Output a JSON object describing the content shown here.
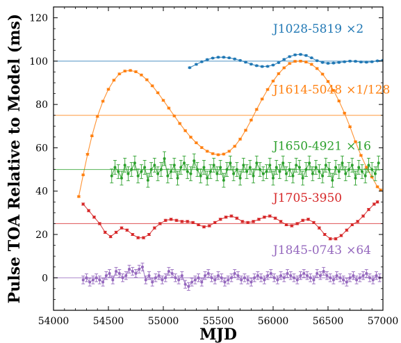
{
  "chart_data": {
    "type": "scatter",
    "xlabel": "MJD",
    "ylabel": "Pulse TOA Relative to Model (ms)",
    "xlim": [
      54000,
      57000
    ],
    "ylim": [
      -15,
      125
    ],
    "xticks": [
      54000,
      54500,
      55000,
      55500,
      56000,
      56500,
      57000
    ],
    "yticks": [
      0,
      20,
      40,
      60,
      80,
      100,
      120
    ],
    "grid": false,
    "series": [
      {
        "name": "J1028-5819",
        "scale_label": "×2",
        "color": "#1f77b4",
        "baseline": 100,
        "label_pos": [
          56000,
          115
        ],
        "error": 0.3,
        "x": [
          55240,
          55300,
          55350,
          55400,
          55450,
          55500,
          55550,
          55600,
          55650,
          55700,
          55750,
          55800,
          55850,
          55900,
          55950,
          56000,
          56050,
          56100,
          56150,
          56200,
          56250,
          56300,
          56350,
          56400,
          56450,
          56500,
          56550,
          56600,
          56650,
          56700,
          56750,
          56800,
          56850,
          56900,
          56950,
          57000
        ],
        "y": [
          97,
          98.5,
          99.7,
          100.7,
          101.4,
          101.8,
          101.8,
          101.5,
          101,
          100.3,
          99.5,
          98.6,
          97.9,
          97.5,
          97.6,
          98.2,
          99.3,
          100.8,
          102.1,
          102.9,
          103.1,
          102.6,
          101.5,
          100.2,
          99.4,
          99,
          99.1,
          99.4,
          99.7,
          100,
          99.9,
          99.6,
          99.5,
          99.7,
          100.1,
          100.4
        ]
      },
      {
        "name": "J1614-5048",
        "scale_label": "×1/128",
        "color": "#ff7f0e",
        "baseline": 75,
        "label_pos": [
          56000,
          87
        ],
        "error": 0.4,
        "x": [
          54230,
          54270,
          54310,
          54350,
          54400,
          54450,
          54500,
          54550,
          54600,
          54650,
          54700,
          54750,
          54800,
          54850,
          54900,
          54950,
          55000,
          55050,
          55100,
          55150,
          55200,
          55250,
          55300,
          55350,
          55400,
          55450,
          55500,
          55550,
          55600,
          55650,
          55700,
          55750,
          55800,
          55850,
          55900,
          55950,
          56000,
          56050,
          56100,
          56150,
          56200,
          56250,
          56300,
          56350,
          56400,
          56450,
          56500,
          56550,
          56600,
          56650,
          56700,
          56750,
          56800,
          56850,
          56900,
          56950,
          56980
        ],
        "y": [
          37.5,
          47.5,
          57,
          65.5,
          74.5,
          81.5,
          87,
          91.2,
          94.1,
          95.4,
          95.7,
          95.1,
          93.6,
          91.4,
          88.6,
          85.4,
          81.9,
          78.3,
          74.7,
          71.2,
          67.9,
          64.9,
          62.3,
          60.1,
          58.4,
          57.3,
          56.8,
          57.1,
          58.4,
          60.7,
          64,
          68.1,
          72.8,
          77.7,
          82.5,
          86.9,
          90.8,
          94.2,
          96.9,
          98.9,
          99.9,
          100,
          99.6,
          98.5,
          96.6,
          94,
          90.6,
          86.5,
          81.6,
          76,
          69.7,
          62.8,
          56.5,
          51,
          46.5,
          42,
          40.5
        ]
      },
      {
        "name": "J1650-4921",
        "scale_label": "×16",
        "color": "#2ca02c",
        "baseline": 50,
        "label_pos": [
          56000,
          61
        ],
        "error": 3.2,
        "x": [
          54530,
          54560,
          54590,
          54620,
          54650,
          54680,
          54710,
          54740,
          54770,
          54800,
          54830,
          54860,
          54890,
          54920,
          54950,
          54980,
          55010,
          55040,
          55070,
          55100,
          55130,
          55160,
          55190,
          55220,
          55250,
          55280,
          55310,
          55340,
          55370,
          55400,
          55430,
          55460,
          55490,
          55520,
          55550,
          55580,
          55610,
          55640,
          55670,
          55700,
          55730,
          55760,
          55790,
          55820,
          55850,
          55880,
          55910,
          55940,
          55970,
          56000,
          56030,
          56060,
          56090,
          56120,
          56150,
          56180,
          56210,
          56240,
          56270,
          56300,
          56330,
          56360,
          56390,
          56420,
          56450,
          56480,
          56510,
          56540,
          56570,
          56600,
          56630,
          56660,
          56690,
          56720,
          56750,
          56780,
          56810,
          56840,
          56870,
          56900,
          56930,
          56960
        ],
        "y": [
          47,
          51,
          49,
          46,
          52,
          48,
          50,
          53,
          47,
          49,
          51,
          45,
          50,
          52,
          48,
          50,
          55,
          47,
          49,
          52,
          46,
          51,
          53,
          49,
          48,
          54,
          50,
          47,
          51,
          46,
          49,
          52,
          48,
          51,
          45,
          50,
          53,
          48,
          50,
          46,
          52,
          49,
          51,
          47,
          53,
          50,
          48,
          49,
          52,
          46,
          51,
          49,
          53,
          48,
          50,
          47,
          52,
          51,
          46,
          50,
          53,
          48,
          51,
          49,
          47,
          52,
          50,
          45,
          51,
          49,
          53,
          48,
          50,
          52,
          46,
          51,
          49,
          47,
          52,
          50,
          48,
          53
        ]
      },
      {
        "name": "J1705-3950",
        "scale_label": "",
        "color": "#d62728",
        "baseline": 25,
        "label_pos": [
          56000,
          37
        ],
        "error": 0.5,
        "x": [
          54270,
          54320,
          54370,
          54420,
          54470,
          54520,
          54570,
          54620,
          54670,
          54720,
          54770,
          54820,
          54870,
          54920,
          54970,
          55020,
          55070,
          55120,
          55170,
          55220,
          55270,
          55320,
          55370,
          55420,
          55470,
          55520,
          55570,
          55620,
          55670,
          55720,
          55770,
          55820,
          55870,
          55920,
          55970,
          56020,
          56070,
          56120,
          56170,
          56220,
          56270,
          56320,
          56370,
          56420,
          56470,
          56520,
          56570,
          56620,
          56670,
          56720,
          56770,
          56820,
          56870,
          56920,
          56950
        ],
        "y": [
          34,
          31,
          28,
          25,
          21,
          19,
          21,
          23,
          22,
          20,
          18.5,
          18.5,
          20,
          23,
          25,
          26.5,
          27,
          26.5,
          26,
          26,
          25.5,
          24.5,
          23.5,
          24,
          25.5,
          27,
          28,
          28.5,
          27.5,
          26,
          25.5,
          26,
          27,
          28,
          28.5,
          27.5,
          26,
          24.5,
          24,
          25,
          26.5,
          27,
          25.5,
          23,
          20,
          18,
          18,
          19.5,
          22,
          24.5,
          26,
          28.5,
          31.5,
          34,
          35
        ]
      },
      {
        "name": "J1845-0743",
        "scale_label": "×64",
        "color": "#9467bd",
        "baseline": 0,
        "label_pos": [
          56000,
          13
        ],
        "error": 1.8,
        "x": [
          54270,
          54300,
          54330,
          54360,
          54390,
          54420,
          54450,
          54480,
          54510,
          54540,
          54570,
          54600,
          54630,
          54660,
          54690,
          54720,
          54750,
          54780,
          54810,
          54840,
          54870,
          54900,
          54930,
          54960,
          54990,
          55020,
          55050,
          55080,
          55110,
          55140,
          55170,
          55200,
          55230,
          55260,
          55290,
          55320,
          55350,
          55380,
          55410,
          55440,
          55470,
          55500,
          55530,
          55560,
          55590,
          55620,
          55650,
          55680,
          55710,
          55740,
          55770,
          55800,
          55830,
          55860,
          55890,
          55920,
          55950,
          55980,
          56010,
          56040,
          56070,
          56100,
          56130,
          56160,
          56190,
          56220,
          56250,
          56280,
          56310,
          56340,
          56370,
          56400,
          56430,
          56460,
          56490,
          56520,
          56550,
          56580,
          56610,
          56640,
          56670,
          56700,
          56730,
          56760,
          56790,
          56820,
          56850,
          56880,
          56910,
          56940,
          56970
        ],
        "y": [
          -1,
          0,
          -2,
          -1,
          0,
          -1,
          -2,
          1,
          2,
          -1,
          3,
          2,
          0,
          1,
          4,
          3,
          2,
          4,
          5,
          -1,
          1,
          -2,
          0,
          1,
          -1,
          0,
          3,
          2,
          0,
          -1,
          1,
          -3,
          -4,
          -2,
          -1,
          0,
          -2,
          1,
          2,
          0,
          -1,
          1,
          0,
          -2,
          -1,
          0,
          2,
          1,
          -1,
          0,
          -1,
          -2,
          0,
          1,
          0,
          -1,
          1,
          2,
          0,
          -1,
          1,
          0,
          2,
          1,
          0,
          -1,
          1,
          2,
          1,
          0,
          -1,
          2,
          1,
          3,
          1,
          0,
          -1,
          1,
          0,
          -1,
          -2,
          0,
          1,
          -1,
          0,
          1,
          2,
          0,
          -1,
          1,
          0
        ]
      }
    ]
  }
}
